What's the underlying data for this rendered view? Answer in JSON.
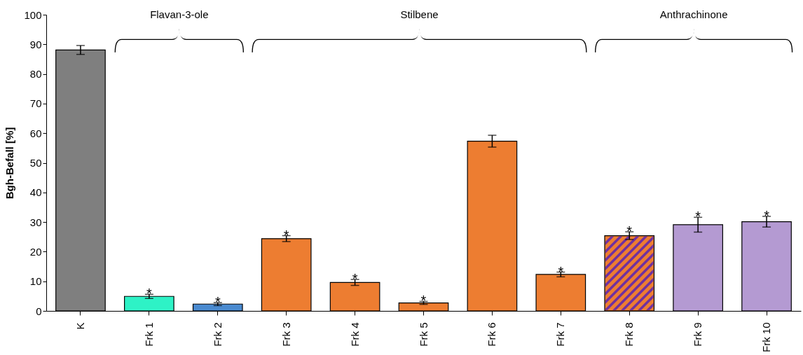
{
  "chart_data": {
    "type": "bar",
    "ylabel": "Bgh-Befall [%]",
    "categories": [
      "K",
      "Frk 1",
      "Frk 2",
      "Frk 3",
      "Frk 4",
      "Frk 5",
      "Frk 6",
      "Frk 7",
      "Frk 8",
      "Frk 9",
      "Frk 10"
    ],
    "values": [
      88.1,
      4.9,
      2.3,
      24.4,
      9.6,
      2.7,
      57.3,
      12.3,
      25.4,
      29.1,
      30.1
    ],
    "errors": [
      1.5,
      0.7,
      0.5,
      1.0,
      1.0,
      0.5,
      2.0,
      0.8,
      1.3,
      2.5,
      1.8
    ],
    "colors": [
      "#7f7f7f",
      "#2ef2c6",
      "#4a8ad0",
      "#ed7d31",
      "#ed7d31",
      "#ed7d31",
      "#ed7d31",
      "#ed7d31",
      "#ed7d31",
      "#b49ad2",
      "#b49ad2"
    ],
    "ylim": [
      0,
      100
    ],
    "yticks": [
      0,
      10,
      20,
      30,
      40,
      50,
      60,
      70,
      80,
      90,
      100
    ],
    "grid": false,
    "annotations": [
      {
        "text": "*",
        "x": "Frk 1",
        "y": 5.6
      },
      {
        "text": "*",
        "x": "Frk 2",
        "y": 2.8
      },
      {
        "text": "*",
        "x": "Frk 3",
        "y": 25.4
      },
      {
        "text": "*",
        "x": "Frk 4",
        "y": 10.6
      },
      {
        "text": "*",
        "x": "Frk 5",
        "y": 3.2
      },
      {
        "text": "*",
        "x": "Frk 7",
        "y": 13.1
      },
      {
        "text": "*",
        "x": "Frk 8",
        "y": 26.7
      },
      {
        "text": "*",
        "x": "Frk 9",
        "y": 31.6
      },
      {
        "text": "*",
        "x": "Frk 10",
        "y": 31.9
      },
      "Flavan-3-ole",
      "Stilbene",
      "Anthrachinone"
    ]
  }
}
